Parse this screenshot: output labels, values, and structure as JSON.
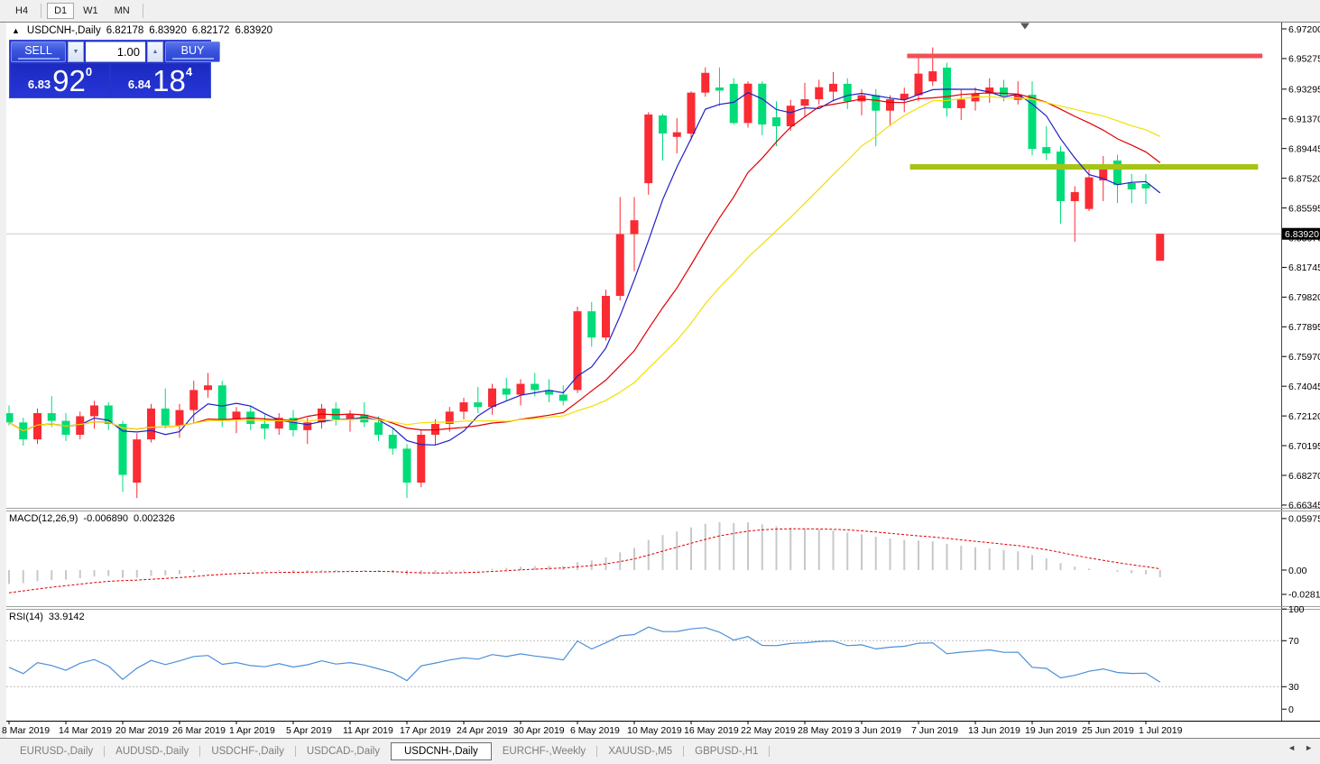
{
  "toolbar": {
    "timeframes": [
      {
        "label": "H4",
        "active": false
      },
      {
        "label": "D1",
        "active": true
      },
      {
        "label": "W1",
        "active": false
      },
      {
        "label": "MN",
        "active": false
      }
    ]
  },
  "chart_header": {
    "collapse_icon": "▲",
    "symbol": "USDCNH-,Daily",
    "open": "6.82178",
    "high": "6.83920",
    "low": "6.82172",
    "close": "6.83920"
  },
  "trade_panel": {
    "sell_label": "SELL",
    "buy_label": "BUY",
    "volume": "1.00",
    "volume_down_icon": "▼",
    "volume_up_icon": "▲",
    "sell_price": {
      "prefix": "6.83",
      "big": "92",
      "sup": "0"
    },
    "buy_price": {
      "prefix": "6.84",
      "big": "18",
      "sup": "4"
    }
  },
  "tabs": {
    "items": [
      {
        "label": "EURUSD-,Daily",
        "active": false
      },
      {
        "label": "AUDUSD-,Daily",
        "active": false
      },
      {
        "label": "USDCHF-,Daily",
        "active": false
      },
      {
        "label": "USDCAD-,Daily",
        "active": false
      },
      {
        "label": "USDCNH-,Daily",
        "active": true
      },
      {
        "label": "EURCHF-,Weekly",
        "active": false
      },
      {
        "label": "XAUUSD-,M5",
        "active": false
      },
      {
        "label": "GBPUSD-,H1",
        "active": false
      }
    ],
    "scroll_left_icon": "◄",
    "scroll_right_icon": "►"
  },
  "chart_data": {
    "type": "candlestick",
    "title": "USDCNH-,Daily",
    "bull_color": "#fa2b33",
    "bear_color": "#00dc78",
    "x_labels": [
      "8 Mar 2019",
      "14 Mar 2019",
      "20 Mar 2019",
      "26 Mar 2019",
      "1 Apr 2019",
      "5 Apr 2019",
      "11 Apr 2019",
      "17 Apr 2019",
      "24 Apr 2019",
      "30 Apr 2019",
      "6 May 2019",
      "10 May 2019",
      "16 May 2019",
      "22 May 2019",
      "28 May 2019",
      "3 Jun 2019",
      "7 Jun 2019",
      "13 Jun 2019",
      "19 Jun 2019",
      "25 Jun 2019",
      "1 Jul 2019"
    ],
    "x_label_indices": [
      0,
      4,
      8,
      12,
      16,
      20,
      24,
      28,
      32,
      36,
      40,
      44,
      48,
      52,
      56,
      60,
      64,
      68,
      72,
      76,
      80
    ],
    "ohlc": {
      "open": [
        6.723,
        6.717,
        6.706,
        6.723,
        6.718,
        6.709,
        6.721,
        6.728,
        6.716,
        6.678,
        6.706,
        6.726,
        6.715,
        6.725,
        6.738,
        6.741,
        6.719,
        6.724,
        6.716,
        6.713,
        6.72,
        6.712,
        6.717,
        6.726,
        6.719,
        6.722,
        6.717,
        6.709,
        6.7,
        6.678,
        6.709,
        6.716,
        6.724,
        6.73,
        6.727,
        6.739,
        6.735,
        6.742,
        6.738,
        6.735,
        6.738,
        6.789,
        6.772,
        6.799,
        6.839,
        6.872,
        6.9159,
        6.902,
        6.9041,
        6.9307,
        6.934,
        6.9364,
        6.911,
        6.9365,
        6.9147,
        6.9089,
        6.9222,
        6.9264,
        6.9313,
        6.9364,
        6.925,
        6.929,
        6.919,
        6.9264,
        6.929,
        6.938,
        6.9469,
        6.9206,
        6.925,
        6.93,
        6.934,
        6.926,
        6.9293,
        6.8954,
        6.8925,
        6.8604,
        6.8553,
        6.8738,
        6.8867,
        6.8721,
        6.8715,
        6.8218
      ],
      "high": [
        6.728,
        6.72,
        6.726,
        6.734,
        6.723,
        6.724,
        6.731,
        6.73,
        6.718,
        6.71,
        6.729,
        6.739,
        6.729,
        6.744,
        6.749,
        6.744,
        6.727,
        6.728,
        6.722,
        6.723,
        6.725,
        6.72,
        6.729,
        6.73,
        6.725,
        6.73,
        6.721,
        6.713,
        6.703,
        6.712,
        6.719,
        6.727,
        6.733,
        6.74,
        6.742,
        6.746,
        6.745,
        6.749,
        6.745,
        6.741,
        6.792,
        6.795,
        6.803,
        6.863,
        6.863,
        6.918,
        6.917,
        6.9141,
        6.9315,
        6.947,
        6.947,
        6.94,
        6.938,
        6.938,
        6.925,
        6.926,
        6.937,
        6.939,
        6.944,
        6.94,
        6.933,
        6.933,
        6.929,
        6.934,
        6.956,
        6.96,
        6.95,
        6.933,
        6.934,
        6.94,
        6.939,
        6.938,
        6.938,
        6.909,
        6.896,
        6.87,
        6.8826,
        6.8896,
        6.8904,
        6.878,
        6.878,
        6.8392
      ],
      "low": [
        6.715,
        6.702,
        6.703,
        6.714,
        6.705,
        6.706,
        6.713,
        6.712,
        6.672,
        6.668,
        6.704,
        6.713,
        6.707,
        6.717,
        6.733,
        6.714,
        6.71,
        6.712,
        6.706,
        6.709,
        6.708,
        6.703,
        6.713,
        6.715,
        6.711,
        6.714,
        6.705,
        6.696,
        6.668,
        6.675,
        6.702,
        6.711,
        6.719,
        6.723,
        6.722,
        6.731,
        6.728,
        6.734,
        6.73,
        6.728,
        6.736,
        6.766,
        6.77,
        6.796,
        6.815,
        6.8645,
        6.8866,
        6.8913,
        6.9,
        6.928,
        6.922,
        6.91,
        6.908,
        6.903,
        6.896,
        6.906,
        6.915,
        6.923,
        6.925,
        6.92,
        6.916,
        6.896,
        6.909,
        6.918,
        6.925,
        6.935,
        6.915,
        6.913,
        6.919,
        6.924,
        6.925,
        6.923,
        6.89,
        6.887,
        6.8458,
        6.8341,
        6.854,
        6.8604,
        6.8592,
        6.859,
        6.8586,
        6.8217
      ],
      "close": [
        6.717,
        6.706,
        6.723,
        6.718,
        6.709,
        6.721,
        6.728,
        6.716,
        6.683,
        6.706,
        6.726,
        6.715,
        6.725,
        6.738,
        6.741,
        6.719,
        6.724,
        6.716,
        6.713,
        6.72,
        6.712,
        6.717,
        6.726,
        6.719,
        6.722,
        6.717,
        6.709,
        6.7,
        6.678,
        6.709,
        6.716,
        6.724,
        6.73,
        6.727,
        6.739,
        6.735,
        6.742,
        6.738,
        6.735,
        6.731,
        6.789,
        6.772,
        6.799,
        6.839,
        6.848,
        6.9165,
        6.9042,
        6.905,
        6.9307,
        6.9435,
        6.932,
        6.911,
        6.9365,
        6.91,
        6.9089,
        6.9222,
        6.9264,
        6.9342,
        6.9364,
        6.925,
        6.929,
        6.919,
        6.9264,
        6.93,
        6.943,
        6.9445,
        6.9206,
        6.9262,
        6.93,
        6.934,
        6.929,
        6.9293,
        6.8942,
        6.8913,
        6.8604,
        6.8662,
        6.8758,
        6.8816,
        6.8709,
        6.868,
        6.8686,
        6.8392
      ]
    },
    "moving_averages": [
      {
        "name": "fast",
        "period": 5,
        "color": "#1f1fc8"
      },
      {
        "name": "medium",
        "period": 13,
        "color": "#e00000"
      },
      {
        "name": "slow",
        "period": 21,
        "color": "#f2e000"
      }
    ],
    "price_axis": {
      "ticks": [
        "6.97200",
        "6.95275",
        "6.93295",
        "6.91370",
        "6.89445",
        "6.87520",
        "6.85595",
        "6.83670",
        "6.81745",
        "6.79820",
        "6.77895",
        "6.75970",
        "6.74045",
        "6.72120",
        "6.70195",
        "6.68270",
        "6.66345"
      ],
      "current_price": "6.83920"
    },
    "horizontal_lines": [
      {
        "name": "resistance",
        "price": 6.9545,
        "color": "#f25056",
        "width": 5,
        "from_index": 63.2,
        "to_index": 88.2
      },
      {
        "name": "support",
        "price": 6.8826,
        "color": "#a6c413",
        "width": 6,
        "from_index": 63.4,
        "to_index": 87.9
      }
    ],
    "macd": {
      "label": "MACD(12,26,9)",
      "fast": 12,
      "slow": 26,
      "signal": 9,
      "current_value": "-0.006890",
      "current_signal": "0.002326",
      "axis_ticks": [
        "0.059758",
        "0.00",
        "-0.02816"
      ],
      "histogram_color": "#c8c8c8",
      "signal_color": "#e00000"
    },
    "rsi": {
      "label": "RSI(14)",
      "period": 14,
      "current_value": "33.9142",
      "levels": [
        "100",
        "70",
        "30",
        "0"
      ],
      "overbought": 70,
      "oversold": 30,
      "line_color": "#4a90d9"
    }
  }
}
